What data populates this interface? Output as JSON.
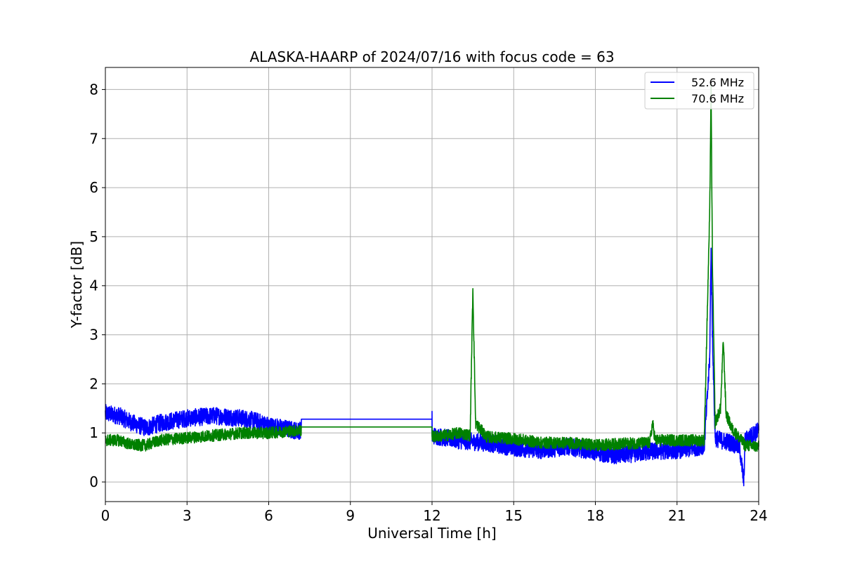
{
  "chart_data": {
    "type": "line",
    "title": "ALASKA-HAARP of 2024/07/16 with focus code = 63",
    "xlabel": "Universal Time [h]",
    "ylabel": "Y-factor [dB]",
    "xlim": [
      0,
      24
    ],
    "ylim": [
      -0.4,
      8.45
    ],
    "xticks": [
      0,
      3,
      6,
      9,
      12,
      15,
      18,
      21,
      24
    ],
    "xtick_labels": [
      "0",
      "3",
      "6",
      "9",
      "12",
      "15",
      "18",
      "21",
      "24"
    ],
    "yticks": [
      0,
      1,
      2,
      3,
      4,
      5,
      6,
      7,
      8
    ],
    "ytick_labels": [
      "0",
      "1",
      "2",
      "3",
      "4",
      "5",
      "6",
      "7",
      "8"
    ],
    "grid": true,
    "legend_position": "top-right",
    "series": [
      {
        "name": "52.6 MHz",
        "color": "#0000ff",
        "noise": 0.18,
        "x": [
          0,
          0.5,
          1.0,
          1.5,
          2.0,
          3.0,
          4.0,
          5.0,
          5.5,
          6.0,
          6.5,
          7.0,
          7.2,
          7.2,
          12.0,
          12.0,
          12.5,
          13.0,
          13.5,
          14.0,
          15.0,
          16.0,
          17.0,
          18.0,
          18.5,
          19.0,
          20.0,
          21.0,
          21.5,
          22.0,
          22.2,
          22.25,
          22.3,
          22.4,
          22.6,
          23.0,
          23.3,
          23.45,
          23.5,
          24.0
        ],
        "y": [
          1.4,
          1.35,
          1.2,
          1.1,
          1.2,
          1.3,
          1.35,
          1.3,
          1.25,
          1.15,
          1.1,
          1.05,
          1.05,
          1.28,
          1.28,
          0.95,
          0.9,
          0.85,
          0.82,
          0.8,
          0.7,
          0.65,
          0.72,
          0.62,
          0.55,
          0.55,
          0.62,
          0.65,
          0.68,
          0.75,
          2.5,
          4.8,
          3.0,
          0.9,
          0.85,
          0.8,
          0.7,
          0.0,
          0.85,
          1.05
        ]
      },
      {
        "name": "70.6 MHz",
        "color": "#008000",
        "noise": 0.12,
        "x": [
          0,
          0.5,
          1.0,
          1.5,
          2.0,
          3.0,
          4.0,
          5.0,
          6.0,
          7.0,
          7.2,
          7.2,
          12.0,
          12.0,
          12.5,
          13.0,
          13.4,
          13.5,
          13.6,
          14.0,
          15.0,
          16.0,
          17.0,
          18.0,
          19.0,
          20.0,
          20.1,
          20.2,
          21.0,
          21.5,
          22.0,
          22.2,
          22.25,
          22.3,
          22.4,
          22.6,
          22.7,
          22.8,
          23.0,
          23.5,
          24.0
        ],
        "y": [
          0.85,
          0.85,
          0.75,
          0.75,
          0.85,
          0.9,
          0.95,
          1.0,
          1.0,
          1.05,
          1.05,
          1.12,
          1.12,
          0.92,
          0.95,
          1.0,
          0.95,
          3.95,
          1.2,
          0.92,
          0.88,
          0.8,
          0.8,
          0.75,
          0.78,
          0.8,
          1.2,
          0.85,
          0.85,
          0.85,
          0.85,
          5.5,
          8.0,
          4.5,
          1.2,
          1.5,
          2.9,
          1.4,
          1.1,
          0.75,
          0.72
        ]
      }
    ]
  }
}
